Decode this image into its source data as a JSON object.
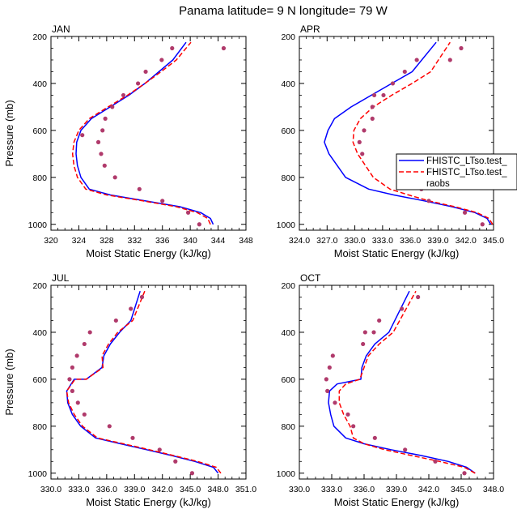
{
  "figure_title": "Panama  latitude= 9 N longitude= 79 W",
  "colors": {
    "model1": "#0000ff",
    "model2": "#ff0000",
    "raobs": "#b03a6b",
    "axis": "#000000"
  },
  "legend": {
    "entries": [
      "FHISTC_LTso.test_",
      "FHISTC_LTso.test_",
      "raobs"
    ]
  },
  "chart_data": [
    {
      "type": "line",
      "panel": "JAN",
      "title": "JAN",
      "xlabel": "Moist Static Energy (kJ/kg)",
      "ylabel": "Pressure (mb)",
      "xlim": [
        320,
        348
      ],
      "ylim": [
        1025,
        200
      ],
      "xticks": [
        320,
        324,
        328,
        332,
        336,
        340,
        344,
        348
      ],
      "xticklabels": [
        "320",
        "324",
        "328",
        "332",
        "336",
        "340",
        "344",
        "348"
      ],
      "yticks": [
        200,
        400,
        600,
        800,
        1000
      ],
      "yticklabels": [
        "200",
        "400",
        "600",
        "800",
        "1000"
      ],
      "series": [
        {
          "name": "FHISTC_LTso.test_",
          "style": "solid",
          "color": "#0000ff",
          "x": [
            343.3,
            342.9,
            341.5,
            338.5,
            333.5,
            328.5,
            325.5,
            324.3,
            323.8,
            323.6,
            323.7,
            324.3,
            325.8,
            328.5,
            331.2,
            333.5,
            335.5,
            337.5,
            339.4
          ],
          "y": [
            1000,
            975,
            950,
            925,
            900,
            875,
            850,
            800,
            750,
            700,
            650,
            600,
            550,
            500,
            450,
            400,
            350,
            300,
            225
          ]
        },
        {
          "name": "FHISTC_LTso.test_",
          "style": "dashed",
          "color": "#ff0000",
          "x": [
            342.9,
            342.5,
            341.0,
            338.0,
            333.2,
            328.0,
            325.0,
            323.8,
            323.3,
            323.1,
            323.3,
            324.0,
            325.5,
            328.2,
            331.0,
            333.5,
            335.8,
            338.0,
            340.1
          ],
          "y": [
            1000,
            975,
            950,
            925,
            900,
            875,
            850,
            800,
            750,
            700,
            650,
            600,
            550,
            500,
            450,
            400,
            350,
            300,
            225
          ]
        }
      ],
      "points": {
        "name": "raobs",
        "x": [
          341.3,
          339.7,
          336.0,
          332.7,
          329.2,
          327.7,
          327.2,
          326.8,
          327.4,
          327.8,
          324.5,
          328.8,
          330.4,
          332.5,
          333.6,
          335.9,
          337.4,
          344.8
        ],
        "y": [
          1000,
          950,
          900,
          850,
          800,
          750,
          700,
          650,
          600,
          550,
          620,
          500,
          450,
          400,
          350,
          300,
          250,
          250
        ]
      }
    },
    {
      "type": "line",
      "panel": "APR",
      "title": "APR",
      "xlabel": "Moist Static Energy (kJ/kg)",
      "ylabel": "",
      "xlim": [
        324,
        345
      ],
      "ylim": [
        1025,
        200
      ],
      "xticks": [
        324,
        327,
        330,
        333,
        336,
        339,
        342,
        345
      ],
      "xticklabels": [
        "324.0",
        "327.0",
        "330.0",
        "333.0",
        "336.0",
        "339.0",
        "342.0",
        "345.0"
      ],
      "yticks": [
        200,
        400,
        600,
        800,
        1000
      ],
      "yticklabels": [
        "200",
        "400",
        "600",
        "800",
        "1000"
      ],
      "series": [
        {
          "name": "FHISTC_LTso.test_",
          "style": "solid",
          "color": "#0000ff",
          "x": [
            344.7,
            344.3,
            343.0,
            340.5,
            337.5,
            334.2,
            331.5,
            329.0,
            327.2,
            326.7,
            327.1,
            327.8,
            329.6,
            331.8,
            334.0,
            336.2,
            338.8
          ],
          "y": [
            1000,
            975,
            950,
            925,
            900,
            875,
            850,
            800,
            700,
            650,
            600,
            550,
            500,
            450,
            400,
            350,
            225
          ]
        },
        {
          "name": "FHISTC_LTso.test_",
          "style": "dashed",
          "color": "#ff0000",
          "x": [
            344.9,
            344.5,
            343.2,
            340.8,
            338.0,
            335.8,
            333.8,
            332.0,
            330.3,
            329.8,
            329.9,
            330.6,
            332.0,
            334.0,
            336.2,
            338.2,
            340.3
          ],
          "y": [
            1000,
            975,
            950,
            925,
            900,
            875,
            850,
            800,
            700,
            650,
            600,
            550,
            500,
            450,
            400,
            350,
            225
          ]
        }
      ],
      "points": {
        "name": "raobs",
        "x": [
          343.8,
          341.9,
          338.0,
          337.2,
          336.8,
          335.0,
          330.8,
          330.5,
          331.0,
          331.9,
          331.9,
          332.1,
          333.1,
          334.1,
          335.4,
          336.7,
          340.3,
          341.5
        ],
        "y": [
          1000,
          950,
          900,
          850,
          825,
          750,
          700,
          650,
          600,
          550,
          500,
          450,
          450,
          400,
          350,
          300,
          300,
          250
        ]
      }
    },
    {
      "type": "line",
      "panel": "JUL",
      "title": "JUL",
      "xlabel": "Moist Static Energy (kJ/kg)",
      "ylabel": "Pressure (mb)",
      "xlim": [
        330,
        351
      ],
      "ylim": [
        1025,
        200
      ],
      "xticks": [
        330,
        333,
        336,
        339,
        342,
        345,
        348,
        351
      ],
      "xticklabels": [
        "330.0",
        "333.0",
        "336.0",
        "339.0",
        "342.0",
        "345.0",
        "348.0",
        "351.0"
      ],
      "yticks": [
        200,
        400,
        600,
        800,
        1000
      ],
      "yticklabels": [
        "200",
        "400",
        "600",
        "800",
        "1000"
      ],
      "series": [
        {
          "name": "FHISTC_LTso.test_",
          "style": "solid",
          "color": "#0000ff",
          "x": [
            348.0,
            347.5,
            345.5,
            343.0,
            340.3,
            337.5,
            334.8,
            333.2,
            332.3,
            331.8,
            331.7,
            332.5,
            333.8,
            335.5,
            335.7,
            336.4,
            337.4,
            338.6,
            339.6
          ],
          "y": [
            1000,
            975,
            950,
            925,
            900,
            875,
            850,
            800,
            750,
            700,
            650,
            600,
            600,
            550,
            500,
            450,
            400,
            350,
            225
          ]
        },
        {
          "name": "FHISTC_LTso.test_",
          "style": "dashed",
          "color": "#ff0000",
          "x": [
            348.3,
            347.8,
            345.8,
            343.2,
            340.6,
            337.8,
            335.0,
            333.4,
            332.5,
            331.9,
            331.7,
            332.6,
            333.8,
            335.6,
            335.5,
            336.2,
            337.2,
            338.8,
            340.1
          ],
          "y": [
            1000,
            975,
            950,
            925,
            900,
            875,
            850,
            800,
            750,
            700,
            650,
            600,
            600,
            550,
            500,
            450,
            400,
            350,
            225
          ]
        }
      ],
      "points": {
        "name": "raobs",
        "x": [
          345.2,
          343.4,
          341.7,
          338.8,
          336.3,
          333.6,
          332.9,
          332.3,
          332.0,
          332.3,
          332.8,
          333.6,
          334.2,
          337.0,
          338.6,
          339.8
        ],
        "y": [
          1000,
          950,
          900,
          850,
          800,
          750,
          700,
          650,
          600,
          550,
          500,
          450,
          400,
          350,
          300,
          250
        ]
      }
    },
    {
      "type": "line",
      "panel": "OCT",
      "title": "OCT",
      "xlabel": "Moist Static Energy (kJ/kg)",
      "ylabel": "",
      "xlim": [
        330,
        348
      ],
      "ylim": [
        1025,
        200
      ],
      "xticks": [
        330,
        333,
        336,
        339,
        342,
        345,
        348
      ],
      "xticklabels": [
        "330.0",
        "333.0",
        "336.0",
        "339.0",
        "342.0",
        "345.0",
        "348.0"
      ],
      "yticks": [
        200,
        400,
        600,
        800,
        1000
      ],
      "yticklabels": [
        "200",
        "400",
        "600",
        "800",
        "1000"
      ],
      "series": [
        {
          "name": "FHISTC_LTso.test_",
          "style": "solid",
          "color": "#0000ff",
          "x": [
            346.3,
            345.5,
            343.8,
            341.3,
            338.5,
            336.0,
            334.3,
            333.2,
            332.9,
            332.7,
            332.8,
            333.5,
            335.7,
            335.8,
            336.2,
            337.0,
            338.3,
            340.2
          ],
          "y": [
            1000,
            975,
            950,
            925,
            900,
            875,
            850,
            800,
            750,
            700,
            650,
            620,
            600,
            550,
            500,
            450,
            400,
            225
          ]
        },
        {
          "name": "FHISTC_LTso.test_",
          "style": "dashed",
          "color": "#ff0000",
          "x": [
            346.3,
            345.3,
            343.0,
            340.4,
            337.9,
            336.0,
            335.0,
            334.7,
            334.1,
            333.7,
            333.7,
            334.3,
            335.6,
            336.0,
            336.4,
            337.4,
            338.7,
            340.8
          ],
          "y": [
            1000,
            975,
            950,
            925,
            900,
            875,
            850,
            800,
            750,
            700,
            650,
            620,
            600,
            550,
            500,
            450,
            400,
            225
          ]
        }
      ],
      "points": {
        "name": "raobs",
        "x": [
          345.3,
          342.6,
          339.8,
          337.0,
          335.0,
          334.5,
          333.3,
          332.6,
          332.5,
          332.8,
          333.1,
          335.9,
          336.1,
          336.9,
          337.4,
          339.5,
          341.0
        ],
        "y": [
          1000,
          950,
          900,
          850,
          800,
          750,
          700,
          650,
          600,
          550,
          500,
          450,
          400,
          400,
          350,
          300,
          250
        ]
      }
    }
  ]
}
